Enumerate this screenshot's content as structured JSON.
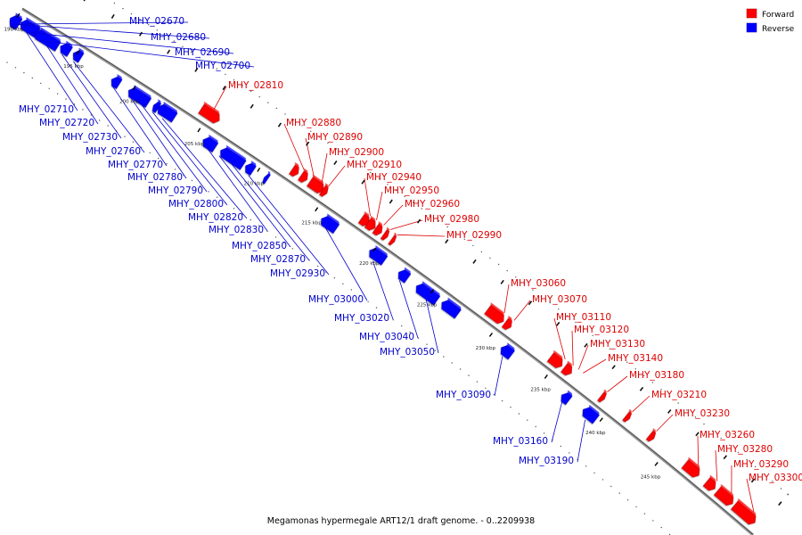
{
  "caption": "Megamonas hypermegale ART12/1 draft genome. - 0..2209938",
  "legend": [
    {
      "label": "Forward",
      "color": "#ff0000"
    },
    {
      "label": "Reverse",
      "color": "#0000ff"
    }
  ],
  "ticks": [
    "190 kbp",
    "195 kbp",
    "200 kbp",
    "205 kbp",
    "210 kbp",
    "215 kbp",
    "220 kbp",
    "225 kbp",
    "230 kbp",
    "235 kbp",
    "240 kbp",
    "245 kbp"
  ],
  "forward_labels": [
    "MHY_02810",
    "MHY_02880",
    "MHY_02890",
    "MHY_02900",
    "MHY_02910",
    "MHY_02940",
    "MHY_02950",
    "MHY_02960",
    "MHY_02980",
    "MHY_02990",
    "MHY_03060",
    "MHY_03070",
    "MHY_03110",
    "MHY_03120",
    "MHY_03130",
    "MHY_03140",
    "MHY_03180",
    "MHY_03210",
    "MHY_03230",
    "MHY_03260",
    "MHY_03280",
    "MHY_03290",
    "MHY_03300"
  ],
  "reverse_labels": [
    "MHY_02670",
    "MHY_02680",
    "MHY_02690",
    "MHY_02700",
    "MHY_02710",
    "MHY_02720",
    "MHY_02730",
    "MHY_02760",
    "MHY_02770",
    "MHY_02780",
    "MHY_02790",
    "MHY_02800",
    "MHY_02820",
    "MHY_02830",
    "MHY_02850",
    "MHY_02870",
    "MHY_02930",
    "MHY_03000",
    "MHY_03020",
    "MHY_03040",
    "MHY_03050",
    "MHY_03090",
    "MHY_03160",
    "MHY_03190"
  ]
}
